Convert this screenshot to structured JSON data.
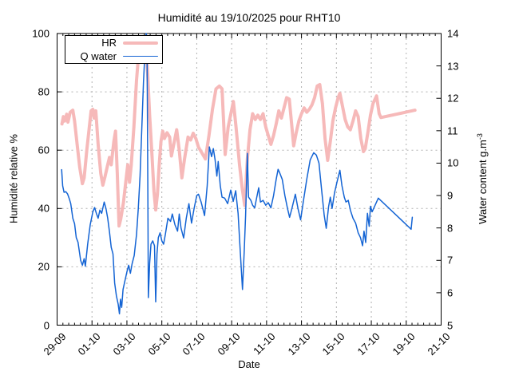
{
  "title": "Humidité au 19/10/2025 pour RHT10",
  "colors": {
    "hr": "#f6b9b9",
    "qwater": "#1464d4",
    "grid": "#b0b0b0",
    "axis": "#000000",
    "background": "#ffffff"
  },
  "chart_data": {
    "type": "line",
    "title": "Humidité au 19/10/2025 pour RHT10",
    "xlabel": "Date",
    "grid": true,
    "legend_position": "top-left",
    "x_axis": {
      "unit": "days since 29-09",
      "min": 0,
      "max": 22,
      "minor_tick_step": 0.3333,
      "ticks": [
        {
          "day": 0,
          "label": "29-09"
        },
        {
          "day": 2,
          "label": "01-10"
        },
        {
          "day": 4,
          "label": "03-10"
        },
        {
          "day": 6,
          "label": "05-10"
        },
        {
          "day": 8,
          "label": "07-10"
        },
        {
          "day": 10,
          "label": "09-10"
        },
        {
          "day": 12,
          "label": "11-10"
        },
        {
          "day": 14,
          "label": "13-10"
        },
        {
          "day": 16,
          "label": "15-10"
        },
        {
          "day": 18,
          "label": "17-10"
        },
        {
          "day": 20,
          "label": "19-10"
        },
        {
          "day": 22,
          "label": "21-10"
        }
      ]
    },
    "y_left": {
      "label": "Humidité relative %",
      "min": 0,
      "max": 100,
      "tick_step": 20,
      "ticks": [
        0,
        20,
        40,
        60,
        80,
        100
      ]
    },
    "y_right": {
      "label": "Water content g.m-3",
      "label_main": "Water content g.m",
      "label_sup": "-3",
      "min": 5,
      "max": 14,
      "tick_step": 1,
      "ticks": [
        5,
        6,
        7,
        8,
        9,
        10,
        11,
        12,
        13,
        14
      ]
    },
    "series": [
      {
        "name": "HR",
        "axis": "left",
        "color": "#f6b9b9",
        "width": 4,
        "points": [
          [
            0.28,
            69
          ],
          [
            0.36,
            71.5
          ],
          [
            0.44,
            70
          ],
          [
            0.55,
            72.3
          ],
          [
            0.62,
            69.6
          ],
          [
            0.75,
            73
          ],
          [
            0.9,
            73.7
          ],
          [
            1.0,
            70
          ],
          [
            1.15,
            62
          ],
          [
            1.3,
            54
          ],
          [
            1.45,
            48.5
          ],
          [
            1.55,
            50.5
          ],
          [
            1.7,
            60
          ],
          [
            1.85,
            68
          ],
          [
            1.95,
            73.5
          ],
          [
            2.05,
            74
          ],
          [
            2.12,
            71
          ],
          [
            2.22,
            73.5
          ],
          [
            2.35,
            62
          ],
          [
            2.5,
            52
          ],
          [
            2.62,
            48
          ],
          [
            2.75,
            51
          ],
          [
            2.9,
            55
          ],
          [
            3.0,
            57.5
          ],
          [
            3.1,
            55
          ],
          [
            3.25,
            63
          ],
          [
            3.35,
            66.5
          ],
          [
            3.45,
            52
          ],
          [
            3.55,
            34
          ],
          [
            3.65,
            36.5
          ],
          [
            3.8,
            42
          ],
          [
            3.95,
            50
          ],
          [
            4.05,
            55
          ],
          [
            4.15,
            49
          ],
          [
            4.25,
            55
          ],
          [
            4.4,
            68
          ],
          [
            4.55,
            84
          ],
          [
            4.7,
            95
          ],
          [
            4.85,
            97
          ],
          [
            5.0,
            97.5
          ],
          [
            5.1,
            95
          ],
          [
            5.2,
            85
          ],
          [
            5.3,
            72
          ],
          [
            5.42,
            60
          ],
          [
            5.55,
            46
          ],
          [
            5.65,
            39.5
          ],
          [
            5.75,
            45
          ],
          [
            5.85,
            55
          ],
          [
            5.95,
            63
          ],
          [
            6.05,
            66.5
          ],
          [
            6.15,
            64
          ],
          [
            6.3,
            66
          ],
          [
            6.45,
            64.5
          ],
          [
            6.55,
            58
          ],
          [
            6.65,
            61
          ],
          [
            6.85,
            67
          ],
          [
            7.0,
            60
          ],
          [
            7.15,
            50.5
          ],
          [
            7.3,
            57
          ],
          [
            7.5,
            64.5
          ],
          [
            7.65,
            63.5
          ],
          [
            7.8,
            65.8
          ],
          [
            7.95,
            64
          ],
          [
            8.1,
            61
          ],
          [
            8.25,
            59.5
          ],
          [
            8.5,
            57
          ],
          [
            8.7,
            65
          ],
          [
            8.9,
            74
          ],
          [
            9.1,
            81
          ],
          [
            9.3,
            82
          ],
          [
            9.45,
            81
          ],
          [
            9.63,
            58.5
          ],
          [
            9.8,
            68
          ],
          [
            10.1,
            76.7
          ],
          [
            10.25,
            68
          ],
          [
            10.45,
            55
          ],
          [
            10.6,
            47
          ],
          [
            10.75,
            41
          ],
          [
            10.9,
            57
          ],
          [
            11.05,
            67
          ],
          [
            11.2,
            72.5
          ],
          [
            11.35,
            70.5
          ],
          [
            11.5,
            72
          ],
          [
            11.65,
            70.5
          ],
          [
            11.8,
            72.5
          ],
          [
            11.95,
            68
          ],
          [
            12.1,
            65
          ],
          [
            12.25,
            62
          ],
          [
            12.4,
            65
          ],
          [
            12.55,
            69
          ],
          [
            12.7,
            73.5
          ],
          [
            12.85,
            71
          ],
          [
            13.0,
            74.5
          ],
          [
            13.15,
            78
          ],
          [
            13.3,
            77.5
          ],
          [
            13.42,
            70
          ],
          [
            13.55,
            61.5
          ],
          [
            13.7,
            66
          ],
          [
            13.85,
            70
          ],
          [
            14.0,
            72.5
          ],
          [
            14.15,
            74.5
          ],
          [
            14.3,
            73
          ],
          [
            14.45,
            74
          ],
          [
            14.6,
            75.5
          ],
          [
            14.75,
            78
          ],
          [
            14.9,
            82
          ],
          [
            15.05,
            82.5
          ],
          [
            15.2,
            76
          ],
          [
            15.35,
            64
          ],
          [
            15.5,
            56.5
          ],
          [
            15.65,
            63
          ],
          [
            15.8,
            70
          ],
          [
            15.95,
            74.5
          ],
          [
            16.1,
            78
          ],
          [
            16.2,
            79.5
          ],
          [
            16.35,
            75
          ],
          [
            16.5,
            70.5
          ],
          [
            16.65,
            68
          ],
          [
            16.8,
            67
          ],
          [
            16.95,
            70
          ],
          [
            17.1,
            73.5
          ],
          [
            17.25,
            71.5
          ],
          [
            17.4,
            64
          ],
          [
            17.55,
            59.5
          ],
          [
            17.65,
            60.5
          ],
          [
            17.8,
            66
          ],
          [
            17.95,
            72
          ],
          [
            18.1,
            76
          ],
          [
            18.3,
            78.6
          ],
          [
            18.45,
            72.5
          ],
          [
            18.55,
            71.2
          ],
          [
            20.5,
            73.7
          ]
        ]
      },
      {
        "name": "Q water",
        "axis": "right",
        "color": "#1464d4",
        "width": 1.5,
        "points": [
          [
            0.26,
            9.8
          ],
          [
            0.32,
            9.3
          ],
          [
            0.4,
            9.1
          ],
          [
            0.5,
            9.12
          ],
          [
            0.6,
            9.05
          ],
          [
            0.7,
            8.9
          ],
          [
            0.78,
            8.75
          ],
          [
            0.9,
            8.3
          ],
          [
            1.0,
            8.13
          ],
          [
            1.1,
            7.7
          ],
          [
            1.2,
            7.56
          ],
          [
            1.35,
            7.0
          ],
          [
            1.45,
            6.85
          ],
          [
            1.55,
            7.05
          ],
          [
            1.62,
            6.82
          ],
          [
            1.75,
            7.5
          ],
          [
            1.9,
            8.1
          ],
          [
            2.05,
            8.5
          ],
          [
            2.15,
            8.63
          ],
          [
            2.25,
            8.45
          ],
          [
            2.35,
            8.3
          ],
          [
            2.45,
            8.55
          ],
          [
            2.55,
            8.45
          ],
          [
            2.7,
            8.8
          ],
          [
            2.8,
            8.6
          ],
          [
            2.9,
            8.3
          ],
          [
            3.0,
            7.88
          ],
          [
            3.1,
            7.4
          ],
          [
            3.2,
            7.2
          ],
          [
            3.3,
            6.3
          ],
          [
            3.4,
            5.9
          ],
          [
            3.5,
            5.65
          ],
          [
            3.57,
            5.35
          ],
          [
            3.63,
            5.8
          ],
          [
            3.7,
            5.55
          ],
          [
            3.78,
            6.1
          ],
          [
            3.88,
            6.35
          ],
          [
            4.0,
            6.65
          ],
          [
            4.1,
            6.85
          ],
          [
            4.2,
            6.6
          ],
          [
            4.3,
            6.9
          ],
          [
            4.42,
            7.15
          ],
          [
            4.55,
            7.8
          ],
          [
            4.65,
            8.6
          ],
          [
            4.75,
            9.6
          ],
          [
            4.85,
            11.0
          ],
          [
            4.95,
            12.5
          ],
          [
            5.05,
            13.6
          ],
          [
            5.1,
            14.0
          ],
          [
            5.15,
            13.9
          ],
          [
            5.2,
            9.0
          ],
          [
            5.23,
            5.85
          ],
          [
            5.3,
            6.9
          ],
          [
            5.38,
            7.5
          ],
          [
            5.48,
            7.6
          ],
          [
            5.58,
            7.45
          ],
          [
            5.65,
            5.72
          ],
          [
            5.72,
            7.2
          ],
          [
            5.8,
            7.7
          ],
          [
            5.9,
            7.85
          ],
          [
            6.0,
            7.6
          ],
          [
            6.1,
            7.5
          ],
          [
            6.2,
            7.8
          ],
          [
            6.35,
            8.3
          ],
          [
            6.5,
            8.2
          ],
          [
            6.6,
            8.43
          ],
          [
            6.75,
            8.1
          ],
          [
            6.9,
            7.9
          ],
          [
            7.0,
            8.43
          ],
          [
            7.1,
            8.0
          ],
          [
            7.25,
            7.69
          ],
          [
            7.4,
            8.3
          ],
          [
            7.55,
            8.75
          ],
          [
            7.7,
            8.15
          ],
          [
            7.85,
            8.6
          ],
          [
            8.0,
            9.0
          ],
          [
            8.1,
            9.04
          ],
          [
            8.25,
            8.8
          ],
          [
            8.45,
            8.38
          ],
          [
            8.6,
            9.3
          ],
          [
            8.72,
            10.5
          ],
          [
            8.85,
            10.2
          ],
          [
            8.95,
            10.45
          ],
          [
            9.05,
            10.1
          ],
          [
            9.15,
            9.6
          ],
          [
            9.23,
            10.05
          ],
          [
            9.35,
            9.3
          ],
          [
            9.45,
            8.95
          ],
          [
            9.6,
            8.92
          ],
          [
            9.77,
            8.75
          ],
          [
            9.95,
            9.17
          ],
          [
            10.09,
            8.82
          ],
          [
            10.23,
            9.15
          ],
          [
            10.37,
            8.45
          ],
          [
            10.5,
            7.2
          ],
          [
            10.62,
            6.1
          ],
          [
            10.72,
            7.3
          ],
          [
            10.8,
            8.38
          ],
          [
            10.9,
            10.3
          ],
          [
            10.97,
            8.95
          ],
          [
            11.1,
            8.85
          ],
          [
            11.2,
            8.7
          ],
          [
            11.32,
            8.62
          ],
          [
            11.42,
            8.9
          ],
          [
            11.55,
            9.24
          ],
          [
            11.65,
            8.8
          ],
          [
            11.8,
            8.85
          ],
          [
            11.95,
            8.7
          ],
          [
            12.1,
            8.78
          ],
          [
            12.25,
            8.62
          ],
          [
            12.4,
            9.0
          ],
          [
            12.55,
            9.5
          ],
          [
            12.66,
            9.81
          ],
          [
            12.75,
            9.7
          ],
          [
            12.9,
            9.5
          ],
          [
            13.05,
            9.0
          ],
          [
            13.2,
            8.6
          ],
          [
            13.32,
            8.33
          ],
          [
            13.45,
            8.6
          ],
          [
            13.65,
            9.04
          ],
          [
            13.8,
            8.6
          ],
          [
            13.95,
            8.25
          ],
          [
            14.1,
            8.8
          ],
          [
            14.3,
            9.5
          ],
          [
            14.5,
            10.1
          ],
          [
            14.7,
            10.32
          ],
          [
            14.85,
            10.25
          ],
          [
            15.0,
            10.0
          ],
          [
            15.15,
            9.2
          ],
          [
            15.3,
            8.4
          ],
          [
            15.42,
            7.99
          ],
          [
            15.55,
            8.65
          ],
          [
            15.65,
            8.95
          ],
          [
            15.75,
            8.6
          ],
          [
            15.9,
            9.1
          ],
          [
            16.05,
            9.45
          ],
          [
            16.2,
            9.78
          ],
          [
            16.32,
            9.3
          ],
          [
            16.45,
            8.95
          ],
          [
            16.55,
            8.8
          ],
          [
            16.68,
            8.85
          ],
          [
            16.8,
            8.55
          ],
          [
            16.95,
            8.3
          ],
          [
            17.1,
            8.15
          ],
          [
            17.25,
            7.85
          ],
          [
            17.38,
            7.7
          ],
          [
            17.5,
            7.45
          ],
          [
            17.58,
            7.9
          ],
          [
            17.68,
            7.55
          ],
          [
            17.78,
            8.45
          ],
          [
            17.88,
            8.05
          ],
          [
            17.95,
            8.67
          ],
          [
            18.05,
            8.5
          ],
          [
            18.4,
            8.92
          ],
          [
            20.28,
            7.96
          ],
          [
            20.35,
            8.33
          ]
        ]
      }
    ]
  }
}
